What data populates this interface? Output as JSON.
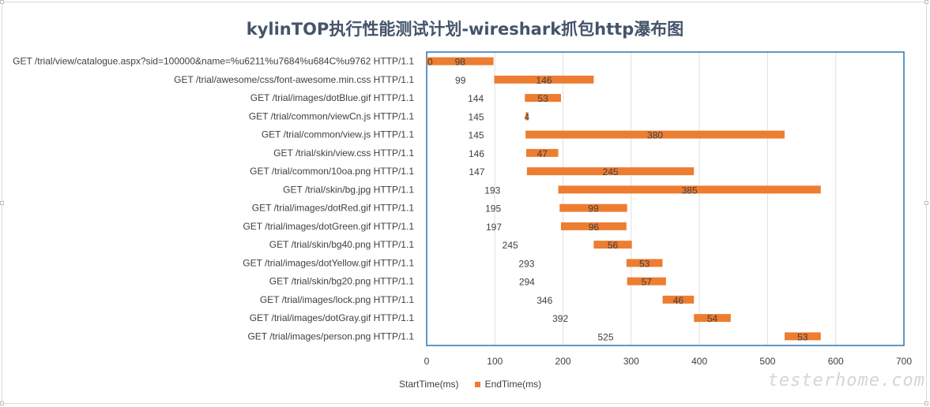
{
  "chart_data": {
    "type": "bar",
    "orientation": "horizontal-stacked-gantt",
    "title": "kylinTOP执行性能测试计划-wireshark抓包http瀑布图",
    "xlim": [
      0,
      700
    ],
    "xticks": [
      0,
      100,
      200,
      300,
      400,
      500,
      600,
      700
    ],
    "grid": true,
    "legend_position": "bottom",
    "categories": [
      "GET /trial/view/catalogue.aspx?sid=100000&name=%u6211%u7684%u684C%u9762 HTTP/1.1",
      "GET /trial/awesome/css/font-awesome.min.css HTTP/1.1",
      "GET /trial/images/dotBlue.gif HTTP/1.1",
      "GET /trial/common/viewCn.js HTTP/1.1",
      "GET /trial/common/view.js HTTP/1.1",
      "GET /trial/skin/view.css HTTP/1.1",
      "GET /trial/common/10oa.png HTTP/1.1",
      "GET /trial/skin/bg.jpg HTTP/1.1",
      "GET /trial/images/dotRed.gif HTTP/1.1",
      "GET /trial/images/dotGreen.gif HTTP/1.1",
      "GET /trial/skin/bg40.png HTTP/1.1",
      "GET /trial/images/dotYellow.gif HTTP/1.1",
      "GET /trial/skin/bg20.png HTTP/1.1",
      "GET /trial/images/lock.png HTTP/1.1",
      "GET /trial/images/dotGray.gif HTTP/1.1",
      "GET /trial/images/person.png HTTP/1.1"
    ],
    "series": [
      {
        "name": "StartTime(ms)",
        "color": "none",
        "values": [
          0,
          99,
          144,
          145,
          145,
          146,
          147,
          193,
          195,
          197,
          245,
          293,
          294,
          346,
          392,
          525
        ]
      },
      {
        "name": "EndTime(ms)",
        "color": "#ed7d31",
        "values": [
          98,
          146,
          53,
          4,
          380,
          47,
          245,
          385,
          99,
          96,
          56,
          53,
          57,
          46,
          54,
          53
        ]
      }
    ]
  },
  "watermark": "testerhome.com"
}
